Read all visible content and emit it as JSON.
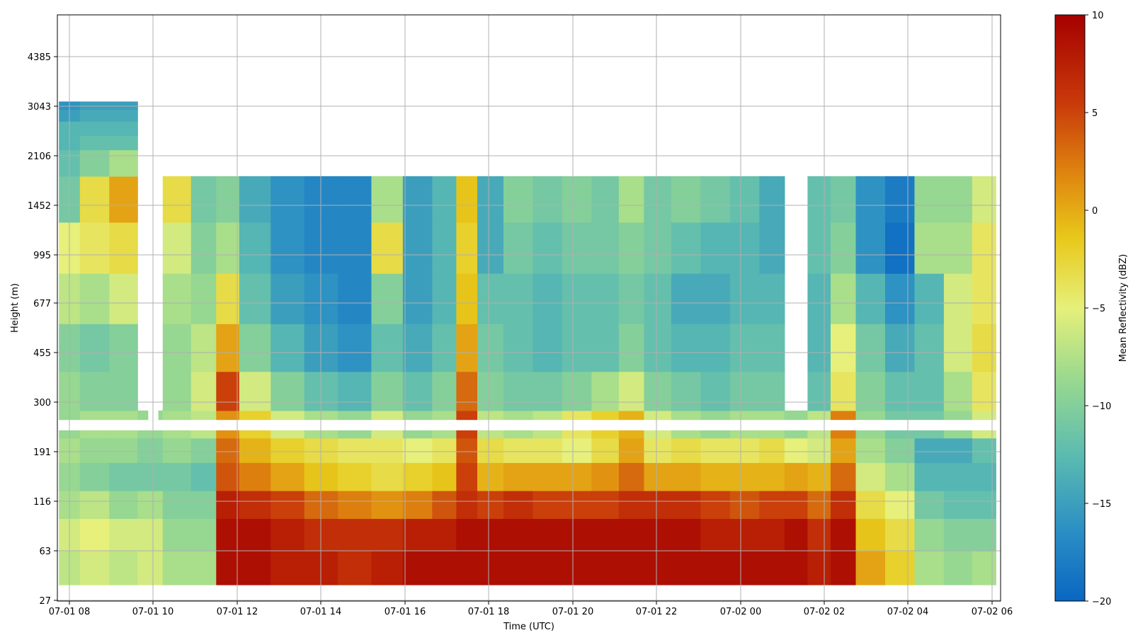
{
  "chart_data": {
    "type": "heatmap",
    "xlabel": "Time (UTC)",
    "ylabel": "Height (m)",
    "colorbar_label": "Mean Reflectivity (dBZ)",
    "colormap": [
      "#0a66c2",
      "#2b8fc4",
      "#5cbcb0",
      "#9ad98f",
      "#e6f07a",
      "#e8c81a",
      "#e08a10",
      "#c83a0a",
      "#a50000"
    ],
    "x_ticks": [
      "07-01 08",
      "07-01 10",
      "07-01 12",
      "07-01 14",
      "07-01 16",
      "07-01 18",
      "07-01 20",
      "07-01 22",
      "07-02 00",
      "07-02 02",
      "07-02 04",
      "07-02 06"
    ],
    "x_range_hours": [
      7.75,
      30.25
    ],
    "y_ticks": [
      "27",
      "63",
      "116",
      "191",
      "300",
      "455",
      "677",
      "995",
      "1452",
      "2106",
      "3043",
      "4385"
    ],
    "c_range": [
      -20,
      10
    ],
    "c_ticks": [
      "10",
      "5",
      "0",
      "−5",
      "−10",
      "−15",
      "−20"
    ],
    "grid": true,
    "columns": [
      {
        "t": 7.9,
        "vals": [
          -7,
          -6,
          -8,
          -9,
          -8,
          -9,
          -9,
          -10,
          -7,
          -5,
          -11,
          -12,
          -13,
          -13,
          -15,
          -16
        ]
      },
      {
        "t": 8.6,
        "vals": [
          -6,
          -5,
          -7,
          -10,
          -9,
          -8,
          -10,
          -11,
          -8,
          -4,
          -3,
          -10,
          -12,
          -13,
          -14,
          -15
        ]
      },
      {
        "t": 9.3,
        "vals": [
          -7,
          -6,
          -9,
          -11,
          -9,
          -8,
          -10,
          -10,
          -6,
          -3,
          1,
          -8,
          -12,
          -13,
          -14,
          -15
        ]
      },
      {
        "t": 9.95,
        "vals": [
          -6,
          -6,
          -8,
          -11,
          -10,
          -9,
          null,
          null,
          null,
          null,
          null,
          null,
          null,
          null,
          null,
          null
        ]
      },
      {
        "t": 10.5,
        "vals": [
          -8,
          -9,
          -10,
          -11,
          -9,
          -8,
          -9,
          -9,
          -8,
          -6,
          -3,
          null,
          null,
          null,
          null,
          null
        ]
      },
      {
        "t": 11.3,
        "vals": [
          -8,
          -9,
          -10,
          -12,
          -10,
          -7,
          -6,
          -7,
          -9,
          -10,
          -11,
          null,
          null,
          null,
          null,
          null
        ]
      },
      {
        "t": 11.7,
        "vals": [
          9,
          9,
          8,
          5,
          4,
          2,
          6,
          1,
          -3,
          -8,
          -10,
          null,
          null,
          null,
          null,
          null
        ]
      },
      {
        "t": 12.4,
        "vals": [
          9,
          9,
          7,
          3,
          0,
          -2,
          -6,
          -10,
          -12,
          -13,
          -14,
          null,
          null,
          null,
          null,
          null
        ]
      },
      {
        "t": 13.2,
        "vals": [
          8,
          8,
          6,
          1,
          -2,
          -6,
          -10,
          -13,
          -15,
          -16,
          -16,
          null,
          null,
          null,
          null,
          null
        ]
      },
      {
        "t": 14.0,
        "vals": [
          8,
          7,
          4,
          -1,
          -3,
          -8,
          -12,
          -15,
          -16,
          -17,
          -17,
          null,
          null,
          null,
          null,
          null
        ]
      },
      {
        "t": 14.8,
        "vals": [
          7,
          7,
          3,
          -2,
          -4,
          -9,
          -13,
          -16,
          -17,
          -17,
          -17,
          null,
          null,
          null,
          null,
          null
        ]
      },
      {
        "t": 15.6,
        "vals": [
          8,
          7,
          2,
          -3,
          -4,
          -6,
          -10,
          -12,
          -10,
          -3,
          -8,
          null,
          null,
          null,
          null,
          null
        ]
      },
      {
        "t": 16.3,
        "vals": [
          9,
          8,
          3,
          -2,
          -5,
          -9,
          -12,
          -14,
          -15,
          -15,
          -15,
          null,
          null,
          null,
          null,
          null
        ]
      },
      {
        "t": 17.0,
        "vals": [
          9,
          8,
          5,
          -1,
          -4,
          -8,
          -10,
          -12,
          -13,
          -13,
          -13,
          null,
          null,
          null,
          null,
          null
        ]
      },
      {
        "t": 17.45,
        "vals": [
          9,
          9,
          7,
          6,
          5,
          6,
          4,
          1,
          -1,
          -2,
          -1,
          null,
          null,
          null,
          null,
          null
        ]
      },
      {
        "t": 18.0,
        "vals": [
          9,
          9,
          6,
          0,
          -3,
          -7,
          -10,
          -11,
          -12,
          -14,
          -14,
          null,
          null,
          null,
          null,
          null
        ]
      },
      {
        "t": 18.7,
        "vals": [
          9,
          9,
          7,
          1,
          -4,
          -8,
          -11,
          -12,
          -12,
          -11,
          -10,
          null,
          null,
          null,
          null,
          null
        ]
      },
      {
        "t": 19.4,
        "vals": [
          9,
          9,
          6,
          1,
          -4,
          -7,
          -11,
          -13,
          -13,
          -12,
          -11,
          null,
          null,
          null,
          null,
          null
        ]
      },
      {
        "t": 20.1,
        "vals": [
          9,
          9,
          6,
          1,
          -5,
          -4,
          -10,
          -12,
          -12,
          -11,
          -10,
          null,
          null,
          null,
          null,
          null
        ]
      },
      {
        "t": 20.8,
        "vals": [
          9,
          9,
          6,
          2,
          -3,
          -2,
          -8,
          -12,
          -12,
          -11,
          -11,
          null,
          null,
          null,
          null,
          null
        ]
      },
      {
        "t": 21.4,
        "vals": [
          9,
          9,
          7,
          4,
          1,
          0,
          -6,
          -10,
          -11,
          -10,
          -8,
          null,
          null,
          null,
          null,
          null
        ]
      },
      {
        "t": 22.0,
        "vals": [
          9,
          9,
          7,
          1,
          -4,
          -6,
          -10,
          -12,
          -12,
          -11,
          -11,
          null,
          null,
          null,
          null,
          null
        ]
      },
      {
        "t": 22.7,
        "vals": [
          9,
          9,
          7,
          1,
          -3,
          -8,
          -11,
          -13,
          -14,
          -12,
          -10,
          null,
          null,
          null,
          null,
          null
        ]
      },
      {
        "t": 23.4,
        "vals": [
          9,
          8,
          6,
          0,
          -4,
          -9,
          -12,
          -13,
          -14,
          -13,
          -11,
          null,
          null,
          null,
          null,
          null
        ]
      },
      {
        "t": 24.1,
        "vals": [
          9,
          8,
          5,
          0,
          -4,
          -8,
          -11,
          -12,
          -13,
          -13,
          -12,
          null,
          null,
          null,
          null,
          null
        ]
      },
      {
        "t": 24.8,
        "vals": [
          9,
          8,
          6,
          0,
          -3,
          -8,
          -11,
          -12,
          -13,
          -14,
          -14,
          null,
          null,
          null,
          null,
          null
        ]
      },
      {
        "t": 25.3,
        "vals": [
          9,
          9,
          6,
          1,
          -5,
          -9,
          null,
          null,
          null,
          null,
          null,
          null,
          null,
          null,
          null,
          null
        ]
      },
      {
        "t": 25.9,
        "vals": [
          8,
          7,
          4,
          0,
          -6,
          -7,
          -12,
          -13,
          -13,
          -12,
          -12,
          null,
          null,
          null,
          null,
          null
        ]
      },
      {
        "t": 26.4,
        "vals": [
          9,
          9,
          7,
          4,
          1,
          3,
          -4,
          -5,
          -8,
          -10,
          -11,
          null,
          null,
          null,
          null,
          null
        ]
      },
      {
        "t": 27.1,
        "vals": [
          1,
          -1,
          -3,
          -6,
          -8,
          -9,
          -10,
          -11,
          -13,
          -16,
          -16,
          null,
          null,
          null,
          null,
          null
        ]
      },
      {
        "t": 27.8,
        "vals": [
          -2,
          -3,
          -5,
          -8,
          -10,
          -11,
          -12,
          -14,
          -16,
          -19,
          -18,
          null,
          null,
          null,
          null,
          null
        ]
      },
      {
        "t": 28.5,
        "vals": [
          -8,
          -9,
          -11,
          -13,
          -14,
          -11,
          -12,
          -12,
          -13,
          -8,
          -9,
          null,
          null,
          null,
          null,
          null
        ]
      },
      {
        "t": 29.2,
        "vals": [
          -9,
          -10,
          -12,
          -13,
          -14,
          -9,
          -8,
          -6,
          -6,
          -8,
          -9,
          null,
          null,
          null,
          null,
          null
        ]
      },
      {
        "t": 29.85,
        "vals": [
          -8,
          -10,
          -12,
          -13,
          -12,
          -6,
          -4,
          -3,
          -4,
          -4,
          -6,
          null,
          null,
          null,
          null,
          null
        ]
      }
    ],
    "row_heights_m": [
      45,
      80,
      110,
      150,
      195,
      240,
      320,
      470,
      700,
      1050,
      1550,
      2106,
      2300,
      2600,
      2850,
      3100
    ]
  }
}
